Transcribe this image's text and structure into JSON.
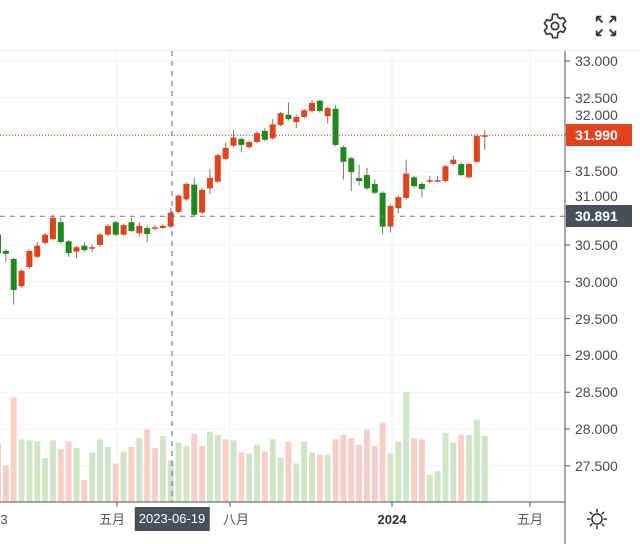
{
  "toolbar": {
    "settings_icon": "gear-icon",
    "fullscreen_icon": "expand-icon",
    "theme_icon": "sun-icon"
  },
  "colors": {
    "up": "#e0441e",
    "down": "#1e8a1e",
    "volume_up": "#f7cfc6",
    "volume_down": "#cfe5c6",
    "last_price_tag": "#e0441e",
    "crosshair_tag": "#4a4f5a"
  },
  "chart_data": {
    "type": "candlestick",
    "interval": "weekly",
    "ylim": [
      27.2,
      33.1
    ],
    "grid": true,
    "price_axis_labels": [
      "33.000",
      "32.500",
      "32.000",
      "31.500",
      "31.000",
      "30.500",
      "30.000",
      "29.500",
      "29.000",
      "28.500",
      "28.000",
      "27.500"
    ],
    "time_axis_labels": [
      {
        "label": "3",
        "bold": false
      },
      {
        "label": "五月",
        "bold": false
      },
      {
        "label": "八月",
        "bold": false
      },
      {
        "label": "2024",
        "bold": true
      },
      {
        "label": "五月",
        "bold": false
      }
    ],
    "last_price": "31.990",
    "crosshair": {
      "price": "30.891",
      "date": "2023-06-19"
    },
    "ohlc": [
      [
        30.64,
        30.66,
        30.37,
        30.39
      ],
      [
        30.42,
        30.44,
        30.27,
        30.38
      ],
      [
        30.31,
        30.33,
        29.69,
        29.89
      ],
      [
        29.94,
        30.17,
        29.92,
        30.15
      ],
      [
        30.2,
        30.44,
        30.18,
        30.42
      ],
      [
        30.34,
        30.54,
        30.32,
        30.49
      ],
      [
        30.53,
        30.66,
        30.51,
        30.64
      ],
      [
        30.58,
        30.91,
        30.56,
        30.87
      ],
      [
        30.81,
        30.87,
        30.52,
        30.54
      ],
      [
        30.55,
        30.57,
        30.34,
        30.39
      ],
      [
        30.41,
        30.49,
        30.32,
        30.47
      ],
      [
        30.49,
        30.54,
        30.41,
        30.43
      ],
      [
        30.46,
        30.51,
        30.4,
        30.47
      ],
      [
        30.5,
        30.66,
        30.48,
        30.64
      ],
      [
        30.64,
        30.78,
        30.62,
        30.76
      ],
      [
        30.81,
        30.83,
        30.62,
        30.64
      ],
      [
        30.64,
        30.79,
        30.62,
        30.77
      ],
      [
        30.81,
        30.87,
        30.67,
        30.69
      ],
      [
        30.66,
        30.81,
        30.62,
        30.76
      ],
      [
        30.73,
        30.76,
        30.54,
        30.65
      ],
      [
        30.72,
        30.77,
        30.7,
        30.74
      ],
      [
        30.73,
        30.78,
        30.72,
        30.76
      ],
      [
        30.75,
        31.0,
        30.73,
        30.94
      ],
      [
        30.95,
        31.19,
        30.93,
        31.17
      ],
      [
        31.12,
        31.35,
        31.1,
        31.33
      ],
      [
        31.32,
        31.41,
        30.88,
        30.91
      ],
      [
        30.94,
        31.27,
        30.92,
        31.25
      ],
      [
        31.27,
        31.53,
        31.19,
        31.41
      ],
      [
        31.36,
        31.74,
        31.34,
        31.72
      ],
      [
        31.67,
        31.89,
        31.65,
        31.82
      ],
      [
        31.85,
        32.06,
        31.83,
        31.96
      ],
      [
        31.94,
        31.96,
        31.76,
        31.86
      ],
      [
        31.83,
        31.92,
        31.81,
        31.9
      ],
      [
        31.9,
        32.05,
        31.88,
        32.02
      ],
      [
        32.05,
        32.09,
        31.91,
        31.93
      ],
      [
        31.95,
        32.21,
        31.93,
        32.14
      ],
      [
        32.13,
        32.31,
        32.11,
        32.29
      ],
      [
        32.27,
        32.44,
        32.19,
        32.21
      ],
      [
        32.17,
        32.27,
        32.09,
        32.24
      ],
      [
        32.24,
        32.35,
        32.22,
        32.33
      ],
      [
        32.32,
        32.47,
        32.3,
        32.43
      ],
      [
        32.46,
        32.47,
        32.3,
        32.32
      ],
      [
        32.25,
        32.38,
        32.15,
        32.36
      ],
      [
        32.35,
        32.4,
        31.84,
        31.86
      ],
      [
        31.83,
        31.85,
        31.39,
        31.63
      ],
      [
        31.68,
        31.7,
        31.23,
        31.49
      ],
      [
        31.41,
        31.59,
        31.31,
        31.37
      ],
      [
        31.45,
        31.55,
        31.25,
        31.27
      ],
      [
        31.33,
        31.39,
        31.19,
        31.21
      ],
      [
        31.21,
        31.23,
        30.65,
        30.75
      ],
      [
        30.75,
        31.05,
        30.67,
        31.03
      ],
      [
        31.0,
        31.17,
        30.93,
        31.15
      ],
      [
        31.14,
        31.66,
        31.12,
        31.47
      ],
      [
        31.42,
        31.44,
        31.28,
        31.3
      ],
      [
        31.33,
        31.35,
        31.15,
        31.26
      ],
      [
        31.36,
        31.44,
        31.34,
        31.38
      ],
      [
        31.37,
        31.44,
        31.35,
        31.38
      ],
      [
        31.37,
        31.59,
        31.35,
        31.57
      ],
      [
        31.6,
        31.71,
        31.58,
        31.66
      ],
      [
        31.6,
        31.63,
        31.43,
        31.45
      ],
      [
        31.42,
        31.62,
        31.4,
        31.6
      ],
      [
        31.63,
        32.0,
        31.61,
        31.98
      ],
      [
        31.97,
        32.06,
        31.79,
        31.99
      ]
    ],
    "volume_relative": [
      53,
      33,
      95,
      57,
      56,
      55,
      40,
      56,
      48,
      55,
      49,
      20,
      45,
      57,
      50,
      35,
      46,
      50,
      58,
      66,
      49,
      60,
      38,
      54,
      51,
      62,
      51,
      64,
      61,
      57,
      56,
      45,
      44,
      52,
      46,
      57,
      40,
      55,
      35,
      55,
      45,
      43,
      43,
      57,
      61,
      58,
      52,
      66,
      51,
      72,
      44,
      55,
      100,
      58,
      57,
      25,
      28,
      63,
      54,
      61,
      61,
      75,
      60
    ],
    "volume_colors": [
      "up",
      "up",
      "up",
      "down",
      "down",
      "down",
      "down",
      "down",
      "up",
      "up",
      "down",
      "up",
      "down",
      "down",
      "down",
      "up",
      "down",
      "up",
      "down",
      "up",
      "up",
      "down",
      "down",
      "down",
      "down",
      "up",
      "up",
      "down",
      "down",
      "up",
      "down",
      "up",
      "down",
      "down",
      "up",
      "down",
      "down",
      "up",
      "down",
      "down",
      "down",
      "up",
      "down",
      "up",
      "up",
      "up",
      "up",
      "up",
      "up",
      "up",
      "down",
      "down",
      "down",
      "up",
      "up",
      "down",
      "down",
      "down",
      "down",
      "up",
      "down",
      "down",
      "down"
    ]
  }
}
